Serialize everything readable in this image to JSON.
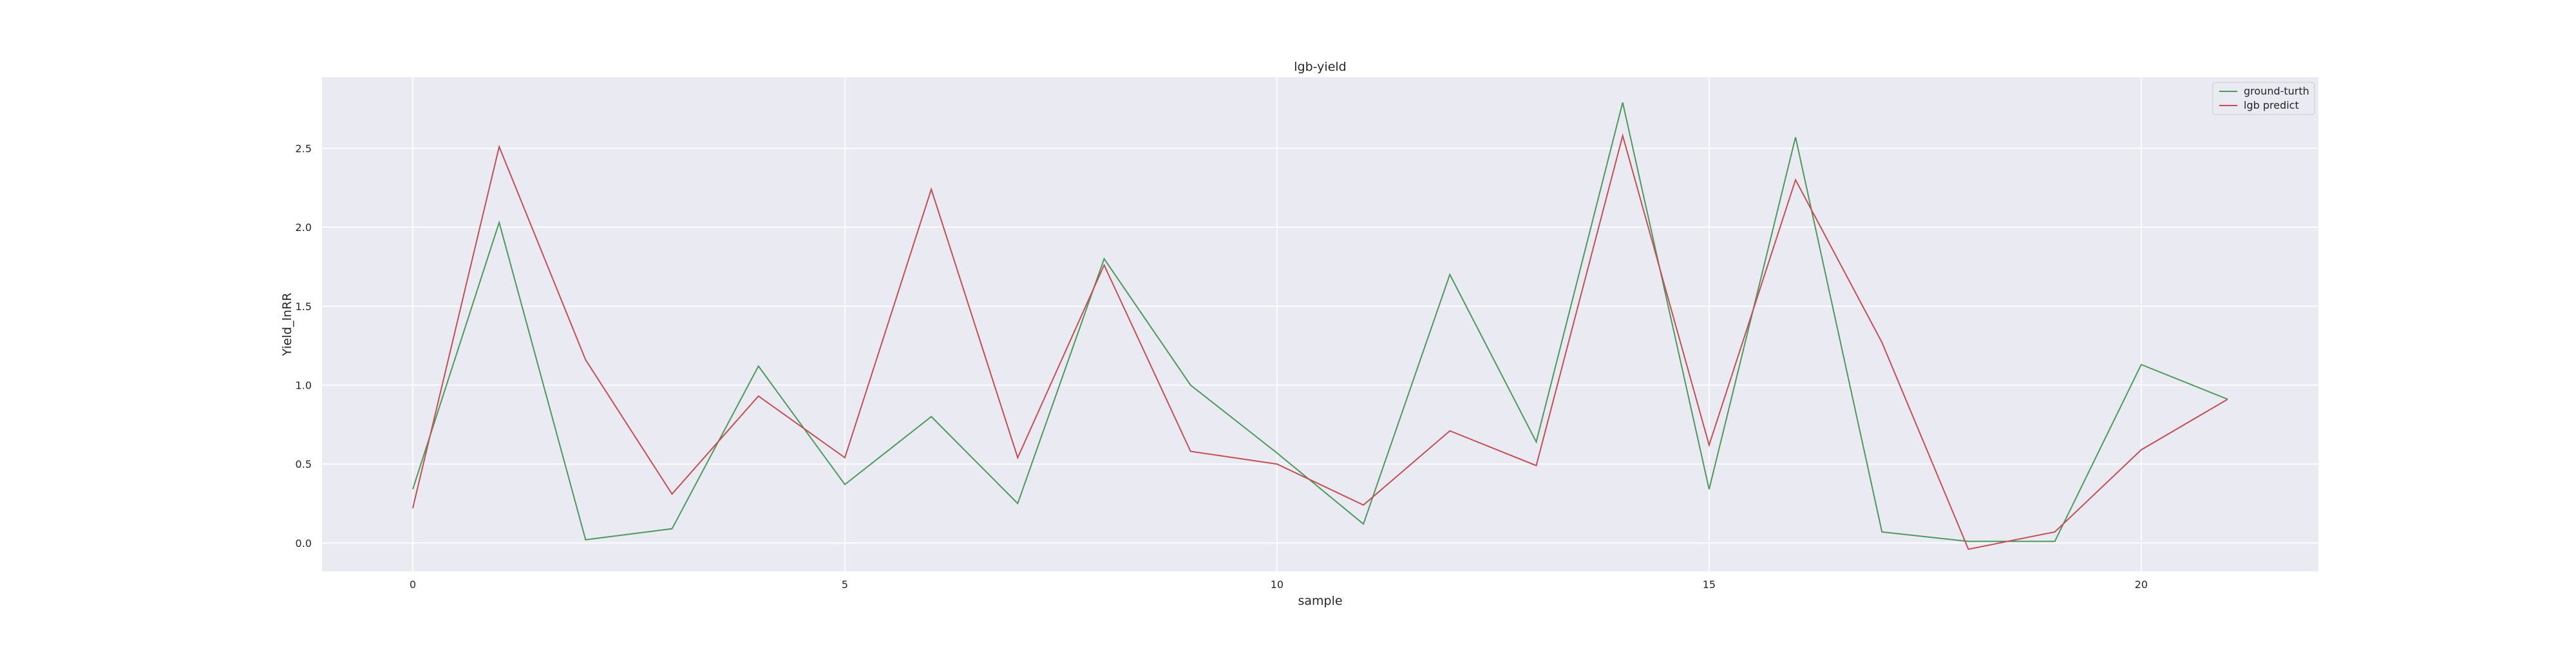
{
  "chart_data": {
    "type": "line",
    "title": "lgb-yield",
    "xlabel": "sample",
    "ylabel": "Yield_lnRR",
    "xlim": [
      -1.05,
      22.05
    ],
    "ylim": [
      -0.18,
      2.95
    ],
    "x_ticks": [
      0,
      5,
      10,
      15,
      20
    ],
    "y_ticks": [
      0.0,
      0.5,
      1.0,
      1.5,
      2.0,
      2.5
    ],
    "y_tick_labels": [
      "0.0",
      "0.5",
      "1.0",
      "1.5",
      "2.0",
      "2.5"
    ],
    "grid": true,
    "legend_position": "top-right",
    "x": [
      0,
      1,
      2,
      3,
      4,
      5,
      6,
      7,
      8,
      9,
      10,
      11,
      12,
      13,
      14,
      15,
      16,
      17,
      18,
      19,
      20,
      21
    ],
    "series": [
      {
        "name": "ground-turth",
        "color": "#4a9a5b",
        "values": [
          0.34,
          2.03,
          0.02,
          0.09,
          1.12,
          0.37,
          0.8,
          0.25,
          1.8,
          1.0,
          0.57,
          0.12,
          1.7,
          0.64,
          2.79,
          0.34,
          2.57,
          0.07,
          0.01,
          0.01,
          1.13,
          0.91
        ]
      },
      {
        "name": "lgb predict",
        "color": "#c44e52",
        "values": [
          0.22,
          2.51,
          1.16,
          0.31,
          0.93,
          0.54,
          2.24,
          0.54,
          1.76,
          0.58,
          0.5,
          0.24,
          0.71,
          0.49,
          2.58,
          0.62,
          2.3,
          1.27,
          -0.04,
          0.07,
          0.59,
          0.91
        ]
      }
    ]
  }
}
